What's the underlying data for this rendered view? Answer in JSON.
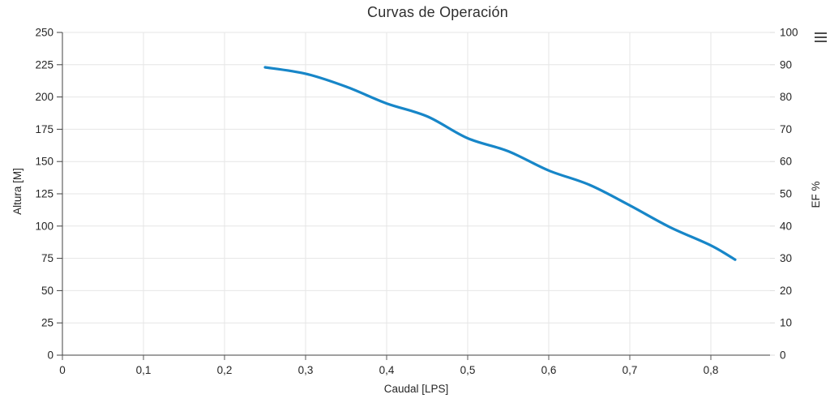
{
  "chart": {
    "title": "Curvas de Operación"
  },
  "toolbar": {
    "menu_icon": "hamburger-menu-icon"
  },
  "axes": {
    "x": {
      "title": "Caudal [LPS]",
      "min": 0,
      "max": 0.873,
      "tick_interval": 0.1,
      "tick_values": [
        0,
        0.1,
        0.2,
        0.3,
        0.4,
        0.5,
        0.6,
        0.7,
        0.8
      ],
      "tick_labels": [
        "0",
        "0,1",
        "0,2",
        "0,3",
        "0,4",
        "0,5",
        "0,6",
        "0,7",
        "0,8"
      ]
    },
    "y_left": {
      "title": "Altura [M]",
      "min": 0,
      "max": 250,
      "tick_interval": 25,
      "tick_values": [
        0,
        25,
        50,
        75,
        100,
        125,
        150,
        175,
        200,
        225,
        250
      ],
      "tick_labels": [
        "0",
        "25",
        "50",
        "75",
        "100",
        "125",
        "150",
        "175",
        "200",
        "225",
        "250"
      ]
    },
    "y_right": {
      "title": "EF %",
      "min": 0,
      "max": 100,
      "tick_interval": 10,
      "tick_values": [
        0,
        10,
        20,
        30,
        40,
        50,
        60,
        70,
        80,
        90,
        100
      ],
      "tick_labels": [
        "0",
        "10",
        "20",
        "30",
        "40",
        "50",
        "60",
        "70",
        "80",
        "90",
        "100"
      ]
    }
  },
  "colors": {
    "series_blue": "#1786c8",
    "grid": "#e6e6e6",
    "axis_line": "#424242",
    "tick_mark": "#5a5a5a",
    "right_tick": "#dcdcdc",
    "label_text": "#262626",
    "title_text": "#2f2f2f",
    "icon": "#4d4d4d",
    "background": "#ffffff"
  },
  "chart_data": {
    "type": "line",
    "title": "Curvas de Operación",
    "xlabel": "Caudal [LPS]",
    "ylabel": "Altura [M]",
    "ylabel_right": "EF %",
    "xlim": [
      0,
      0.873
    ],
    "ylim": [
      0,
      250
    ],
    "ylim_right": [
      0,
      100
    ],
    "grid": true,
    "legend": false,
    "markers": false,
    "series": [
      {
        "name": "Altura [M]",
        "yaxis": "left",
        "color": "#1786c8",
        "x": [
          0.25,
          0.3,
          0.35,
          0.4,
          0.45,
          0.5,
          0.55,
          0.6,
          0.65,
          0.7,
          0.75,
          0.8,
          0.83
        ],
        "y": [
          223,
          218,
          208,
          195,
          185,
          168,
          158,
          143,
          132,
          116,
          99,
          85,
          74
        ]
      }
    ]
  }
}
